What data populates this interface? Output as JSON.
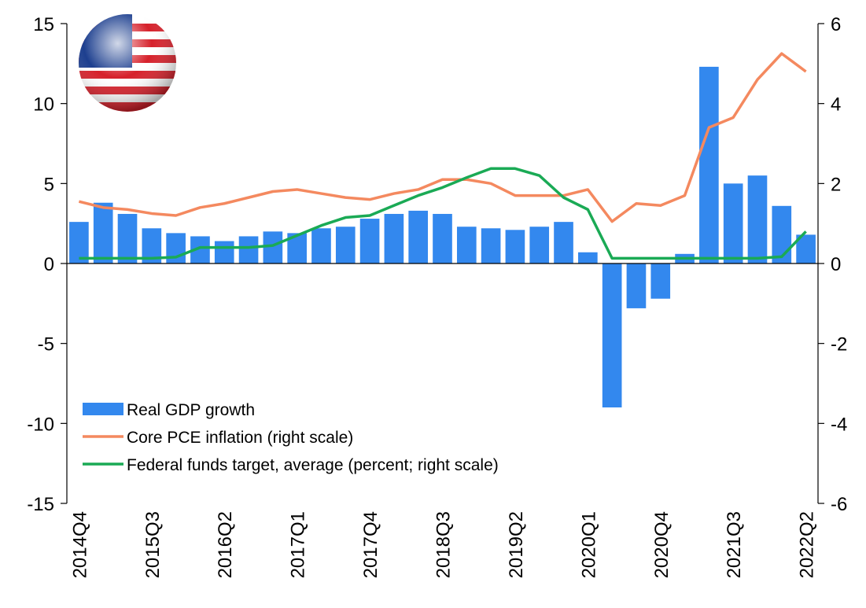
{
  "chart_data": {
    "type": "combo",
    "categories": [
      "2014Q4",
      null,
      null,
      "2015Q3",
      null,
      null,
      "2016Q2",
      null,
      null,
      "2017Q1",
      null,
      null,
      "2017Q4",
      null,
      null,
      "2018Q3",
      null,
      null,
      "2019Q2",
      null,
      null,
      "2020Q1",
      null,
      null,
      "2020Q4",
      null,
      null,
      "2021Q3",
      null,
      null,
      "2022Q2"
    ],
    "series": [
      {
        "name": "Real GDP growth",
        "type": "bar",
        "color": "#3388ee",
        "values": [
          2.6,
          3.8,
          3.1,
          2.2,
          1.9,
          1.7,
          1.4,
          1.7,
          2.0,
          1.9,
          2.2,
          2.3,
          2.8,
          3.1,
          3.3,
          3.1,
          2.3,
          2.2,
          2.1,
          2.3,
          2.6,
          0.7,
          -9.0,
          -2.8,
          -2.2,
          0.6,
          12.3,
          5.0,
          5.5,
          3.6,
          1.8
        ]
      },
      {
        "name": "Core PCE inflation (right scale)",
        "type": "line",
        "axis": "y2",
        "color": "#f4895f",
        "values": [
          1.55,
          1.4,
          1.35,
          1.25,
          1.2,
          1.4,
          1.5,
          1.65,
          1.8,
          1.85,
          1.75,
          1.65,
          1.6,
          1.75,
          1.85,
          2.1,
          2.1,
          2.0,
          1.7,
          1.7,
          1.7,
          1.85,
          1.05,
          1.5,
          1.45,
          1.7,
          3.4,
          3.65,
          4.6,
          5.25,
          4.8
        ]
      },
      {
        "name": "Federal funds target, average (percent; right scale)",
        "type": "line",
        "axis": "y2",
        "color": "#1aaa55",
        "values": [
          0.13,
          0.13,
          0.13,
          0.13,
          0.16,
          0.4,
          0.4,
          0.4,
          0.45,
          0.7,
          0.95,
          1.15,
          1.2,
          1.45,
          1.7,
          1.9,
          2.15,
          2.375,
          2.375,
          2.2,
          1.65,
          1.35,
          0.13,
          0.13,
          0.13,
          0.13,
          0.13,
          0.13,
          0.13,
          0.17,
          0.8
        ]
      }
    ],
    "ylim": [
      -15,
      15
    ],
    "yticks": [
      -15,
      -10,
      -5,
      0,
      5,
      10,
      15
    ],
    "y2lim": [
      -6,
      6
    ],
    "y2ticks": [
      -6,
      -4,
      -2,
      0,
      2,
      4,
      6
    ],
    "legend": "lower left"
  }
}
